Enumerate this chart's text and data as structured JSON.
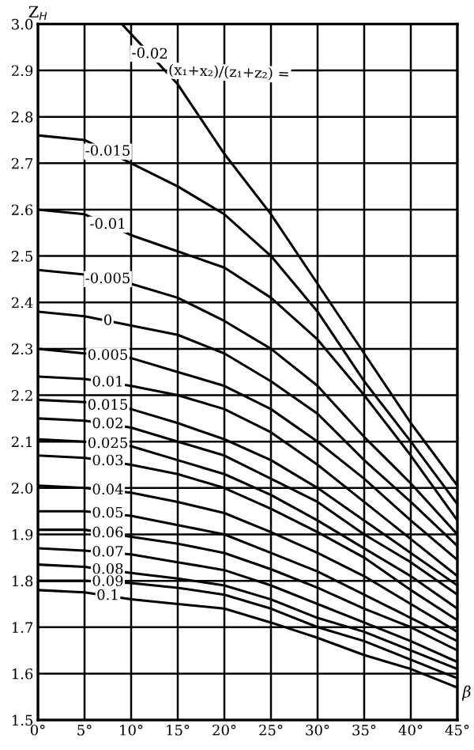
{
  "chart_data": {
    "type": "line",
    "ylabel": "Z$_{H}$",
    "xlabel": "β",
    "legend_title": "(x₁+x₂)/(z₁+z₂) =",
    "x": [
      0,
      5,
      10,
      15,
      20,
      25,
      30,
      35,
      40,
      45
    ],
    "xlim": [
      0,
      45
    ],
    "ylim": [
      1.5,
      3.0
    ],
    "xticks": [
      {
        "value": 0,
        "label": "0°"
      },
      {
        "value": 5,
        "label": "5°"
      },
      {
        "value": 10,
        "label": "10°"
      },
      {
        "value": 15,
        "label": "15°"
      },
      {
        "value": 20,
        "label": "20°"
      },
      {
        "value": 25,
        "label": "25°"
      },
      {
        "value": 30,
        "label": "30°"
      },
      {
        "value": 35,
        "label": "35°"
      },
      {
        "value": 40,
        "label": "40°"
      },
      {
        "value": 45,
        "label": "45°"
      }
    ],
    "yticks": [
      1.5,
      1.6,
      1.7,
      1.8,
      1.9,
      {
        "value": 2,
        "label": "2.0"
      },
      2.1,
      2.2,
      2.3,
      2.4,
      2.5,
      2.6,
      2.7,
      2.8,
      2.9,
      {
        "value": 3,
        "label": "3.0"
      }
    ],
    "grid": true,
    "marker": "none",
    "line_style": "solid",
    "series": [
      {
        "name": "-0.02",
        "color": "#000000",
        "x": [
          9,
          15,
          20,
          25,
          30,
          35,
          40,
          45
        ],
        "values": [
          3.0,
          2.87,
          2.72,
          2.59,
          2.44,
          2.29,
          2.14,
          2.005
        ]
      },
      {
        "name": "-0.015",
        "color": "#000000",
        "values": [
          2.76,
          2.75,
          2.7,
          2.65,
          2.59,
          2.5,
          2.38,
          2.23,
          2.1,
          1.965
        ]
      },
      {
        "name": "-0.01",
        "color": "#000000",
        "values": [
          2.6,
          2.59,
          2.545,
          2.51,
          2.475,
          2.41,
          2.32,
          2.2,
          2.07,
          1.93
        ]
      },
      {
        "name": "-0.005",
        "color": "#000000",
        "values": [
          2.47,
          2.46,
          2.44,
          2.41,
          2.36,
          2.3,
          2.22,
          2.11,
          2.01,
          1.9
        ]
      },
      {
        "name": "0",
        "color": "#000000",
        "values": [
          2.38,
          2.37,
          2.35,
          2.33,
          2.29,
          2.23,
          2.16,
          2.06,
          1.97,
          1.875
        ]
      },
      {
        "name": "0.005",
        "color": "#000000",
        "values": [
          2.3,
          2.29,
          2.28,
          2.25,
          2.22,
          2.17,
          2.1,
          2.02,
          1.93,
          1.845
        ]
      },
      {
        "name": "0.01",
        "color": "#000000",
        "values": [
          2.24,
          2.235,
          2.22,
          2.2,
          2.17,
          2.12,
          2.05,
          1.97,
          1.89,
          1.81
        ]
      },
      {
        "name": "0.015",
        "color": "#000000",
        "values": [
          2.19,
          2.185,
          2.17,
          2.14,
          2.105,
          2.06,
          2.0,
          1.93,
          1.86,
          1.79
        ]
      },
      {
        "name": "0.02",
        "color": "#000000",
        "values": [
          2.15,
          2.145,
          2.13,
          2.1,
          2.07,
          2.02,
          1.97,
          1.9,
          1.84,
          1.77
        ]
      },
      {
        "name": "0.025",
        "color": "#000000",
        "values": [
          2.105,
          2.1,
          2.09,
          2.06,
          2.03,
          1.985,
          1.93,
          1.87,
          1.81,
          1.74
        ]
      },
      {
        "name": "0.03",
        "color": "#000000",
        "values": [
          2.07,
          2.065,
          2.05,
          2.03,
          2.0,
          1.955,
          1.905,
          1.85,
          1.78,
          1.715
        ]
      },
      {
        "name": "0.04",
        "color": "#000000",
        "values": [
          2.005,
          2.0,
          1.99,
          1.97,
          1.946,
          1.905,
          1.86,
          1.81,
          1.75,
          1.69
        ]
      },
      {
        "name": "0.05",
        "color": "#000000",
        "values": [
          1.95,
          1.95,
          1.94,
          1.92,
          1.9,
          1.86,
          1.82,
          1.77,
          1.72,
          1.67
        ]
      },
      {
        "name": "0.06",
        "color": "#000000",
        "values": [
          1.91,
          1.91,
          1.895,
          1.88,
          1.86,
          1.825,
          1.785,
          1.74,
          1.7,
          1.65
        ]
      },
      {
        "name": "0.07",
        "color": "#000000",
        "values": [
          1.87,
          1.865,
          1.857,
          1.84,
          1.823,
          1.79,
          1.75,
          1.71,
          1.67,
          1.625
        ]
      },
      {
        "name": "0.08",
        "color": "#000000",
        "values": [
          1.835,
          1.83,
          1.817,
          1.805,
          1.79,
          1.76,
          1.72,
          1.69,
          1.65,
          1.61
        ]
      },
      {
        "name": "0.09",
        "color": "#000000",
        "values": [
          1.8,
          1.8,
          1.795,
          1.785,
          1.77,
          1.74,
          1.7,
          1.67,
          1.63,
          1.59
        ]
      },
      {
        "name": "0.1",
        "color": "#000000",
        "values": [
          1.78,
          1.775,
          1.76,
          1.75,
          1.74,
          1.71,
          1.677,
          1.64,
          1.61,
          1.57
        ]
      }
    ]
  }
}
